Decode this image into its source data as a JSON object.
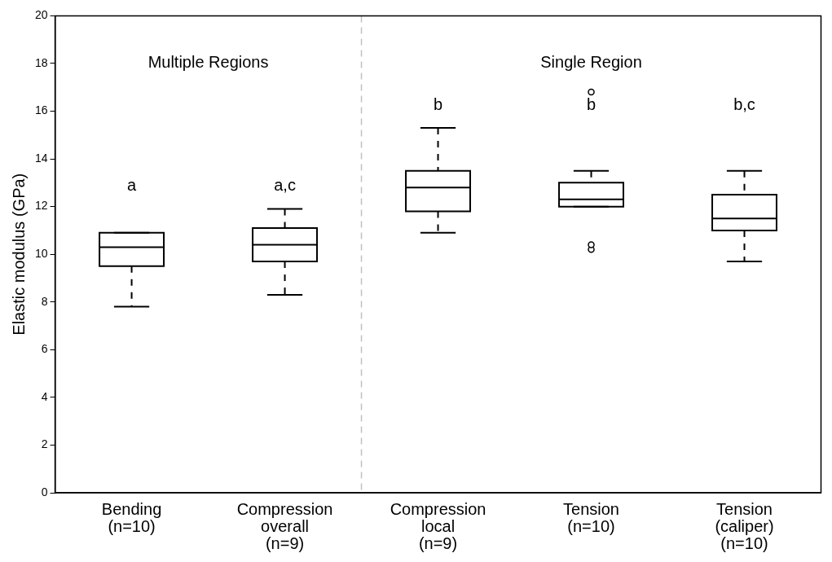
{
  "chart_data": {
    "type": "box",
    "ylabel": "Elastic modulus (GPa)",
    "categories": [
      "Bending\n(n=10)",
      "Compression\noverall\n(n=9)",
      "Compression\nlocal\n(n=9)",
      "Tension\n(n=10)",
      "Tension\n(caliper)\n(n=10)"
    ],
    "boxes": [
      {
        "low": 7.8,
        "q1": 9.5,
        "median": 10.3,
        "q3": 10.9,
        "high": 10.9
      },
      {
        "low": 8.3,
        "q1": 9.7,
        "median": 10.4,
        "q3": 11.1,
        "high": 11.9
      },
      {
        "low": 10.9,
        "q1": 11.8,
        "median": 12.8,
        "q3": 13.5,
        "high": 15.3
      },
      {
        "low": 12.0,
        "q1": 12.0,
        "median": 12.3,
        "q3": 13.0,
        "high": 13.5,
        "outliers": [
          16.8,
          10.4,
          10.2
        ]
      },
      {
        "low": 9.7,
        "q1": 11.0,
        "median": 11.5,
        "q3": 12.5,
        "high": 13.5
      }
    ],
    "ylim": [
      0,
      20
    ],
    "yticks": [
      0,
      2,
      4,
      6,
      8,
      10,
      12,
      14,
      16,
      18,
      20
    ],
    "grid": false,
    "legend": false,
    "annotations": [
      "Multiple Regions",
      "Single Region",
      "a",
      "a,c",
      "b",
      "b",
      "b,c"
    ]
  }
}
